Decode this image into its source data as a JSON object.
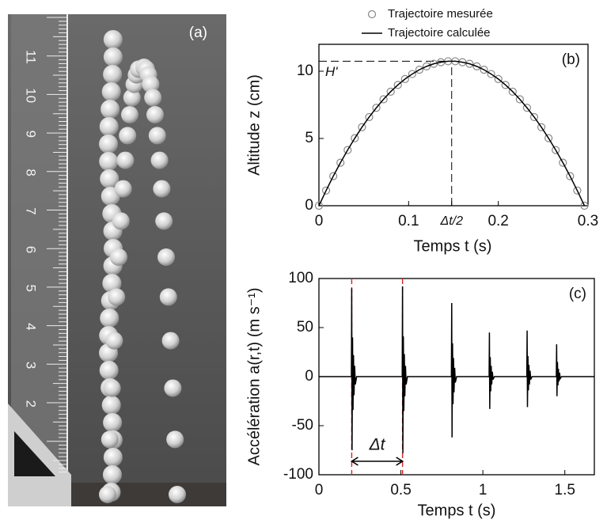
{
  "photo": {
    "panel": "(a)",
    "ruler_labels": [
      "11",
      "10",
      "9",
      "8",
      "7",
      "6",
      "5",
      "4",
      "3",
      "2"
    ]
  },
  "chart_data": [
    {
      "type": "line",
      "panel": "(b)",
      "xlabel": "Temps t (s)",
      "ylabel": "Altitude z (cm)",
      "x": [
        0,
        0.008,
        0.016,
        0.024,
        0.032,
        0.04,
        0.048,
        0.056,
        0.064,
        0.072,
        0.08,
        0.088,
        0.096,
        0.104,
        0.112,
        0.12,
        0.128,
        0.136,
        0.144,
        0.152,
        0.16,
        0.168,
        0.176,
        0.184,
        0.192,
        0.2,
        0.208,
        0.216,
        0.224,
        0.232,
        0.24,
        0.248,
        0.256,
        0.264,
        0.272,
        0.28,
        0.288,
        0.296
      ],
      "series": [
        {
          "name": "Trajectoire mesurée",
          "type": "scatter",
          "color": "#888888",
          "values": [
            0,
            1.13,
            2.2,
            3.2,
            4.14,
            5.02,
            5.84,
            6.59,
            7.28,
            7.91,
            8.48,
            8.98,
            9.42,
            9.79,
            10.11,
            10.36,
            10.55,
            10.67,
            10.74,
            10.74,
            10.67,
            10.55,
            10.36,
            10.11,
            9.79,
            9.42,
            8.98,
            8.48,
            7.91,
            7.28,
            6.59,
            5.84,
            5.02,
            4.14,
            3.2,
            2.2,
            1.13,
            0
          ]
        },
        {
          "name": "Trajectoire calculée",
          "type": "line",
          "color": "#000000",
          "values": [
            0,
            1.13,
            2.2,
            3.2,
            4.14,
            5.02,
            5.84,
            6.59,
            7.28,
            7.91,
            8.48,
            8.98,
            9.42,
            9.79,
            10.11,
            10.36,
            10.55,
            10.67,
            10.74,
            10.74,
            10.67,
            10.55,
            10.36,
            10.11,
            9.79,
            9.42,
            8.98,
            8.48,
            7.91,
            7.28,
            6.59,
            5.84,
            5.02,
            4.14,
            3.2,
            2.2,
            1.13,
            0
          ]
        }
      ],
      "xlim": [
        0,
        0.3
      ],
      "ylim": [
        0,
        12
      ],
      "xticks": [
        0,
        0.1,
        {
          "value": 0.148,
          "label": "Δt/2"
        },
        0.2,
        0.3
      ],
      "yticks": [
        0,
        5,
        10
      ],
      "reference": {
        "label": "H'",
        "x": 0.148,
        "y": 10.74
      },
      "legend": "top"
    },
    {
      "type": "line",
      "panel": "(c)",
      "xlabel": "Temps t (s)",
      "ylabel": "Accélération a(r,t) (m s⁻¹)",
      "x": [
        0,
        0.198,
        0.2,
        0.202,
        0.205,
        0.208,
        0.211,
        0.214,
        0.218,
        0.222,
        0.23,
        0.508,
        0.51,
        0.512,
        0.515,
        0.518,
        0.521,
        0.524,
        0.528,
        0.532,
        0.54,
        0.808,
        0.81,
        0.812,
        0.815,
        0.818,
        0.821,
        0.824,
        0.828,
        0.832,
        0.84,
        1.038,
        1.04,
        1.042,
        1.045,
        1.048,
        1.051,
        1.054,
        1.058,
        1.062,
        1.07,
        1.268,
        1.27,
        1.272,
        1.275,
        1.278,
        1.281,
        1.284,
        1.288,
        1.292,
        1.3,
        1.448,
        1.45,
        1.452,
        1.455,
        1.458,
        1.461,
        1.464,
        1.468,
        1.472,
        1.48,
        1.68
      ],
      "series": [
        {
          "color": "#000000",
          "values": [
            0,
            0,
            90,
            -75,
            40,
            -34,
            22,
            -19,
            11,
            -8,
            0,
            0,
            92,
            -78,
            41,
            -35,
            23,
            -20,
            11,
            -8,
            0,
            0,
            75,
            -62,
            34,
            -28,
            19,
            -16,
            9,
            -6,
            0,
            0,
            45,
            -33,
            20,
            -15,
            11,
            -8,
            5,
            -3,
            0,
            0,
            47,
            -31,
            21,
            -14,
            12,
            -8,
            6,
            -3,
            0,
            0,
            33,
            -20,
            15,
            -9,
            8,
            -5,
            4,
            -2,
            0,
            0
          ]
        }
      ],
      "xlim": [
        0,
        1.68
      ],
      "ylim": [
        -100,
        100
      ],
      "xticks": [
        0,
        0.5,
        1,
        1.5
      ],
      "yticks": [
        -100,
        -50,
        0,
        50,
        100
      ],
      "markers": {
        "x": [
          0.2,
          0.51
        ],
        "color": "#d62728",
        "label": "Δt"
      }
    }
  ]
}
